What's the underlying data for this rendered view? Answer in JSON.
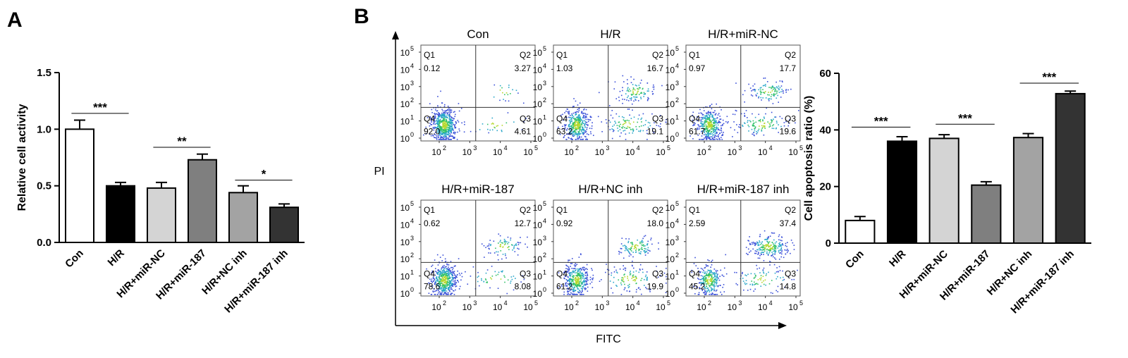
{
  "panel_labels": {
    "a": "A",
    "b": "B"
  },
  "chart_data": [
    {
      "id": "relative-cell-activity",
      "type": "bar",
      "title": "",
      "xlabel": "",
      "ylabel": "Relative cell activity",
      "ylim": [
        0,
        1.5
      ],
      "yticks": [
        0.0,
        0.5,
        1.0,
        1.5
      ],
      "ytick_labels": [
        "0.0",
        "0.5",
        "1.0",
        "1.5"
      ],
      "categories": [
        "Con",
        "H/R",
        "H/R+miR-NC",
        "H/R+miR-187",
        "H/R+NC inh",
        "H/R+miR-187 inh"
      ],
      "values": [
        1.0,
        0.5,
        0.48,
        0.73,
        0.44,
        0.31
      ],
      "errors": [
        0.08,
        0.03,
        0.05,
        0.05,
        0.06,
        0.03
      ],
      "bar_colors": [
        "#ffffff",
        "#000000",
        "#d4d4d4",
        "#7f7f7f",
        "#a3a3a3",
        "#333333"
      ],
      "significance": [
        {
          "from": 0,
          "to": 1,
          "label": "***",
          "y": 1.14
        },
        {
          "from": 2,
          "to": 3,
          "label": "**",
          "y": 0.84
        },
        {
          "from": 4,
          "to": 5,
          "label": "*",
          "y": 0.55
        }
      ],
      "grid": false,
      "legend": "none"
    },
    {
      "id": "cell-apoptosis-ratio",
      "type": "bar",
      "title": "",
      "xlabel": "",
      "ylabel": "Cell apoptosis ratio (%)",
      "ylim": [
        0,
        60
      ],
      "yticks": [
        0,
        20,
        40,
        60
      ],
      "ytick_labels": [
        "0",
        "20",
        "40",
        "60"
      ],
      "categories": [
        "Con",
        "H/R",
        "H/R+miR-NC",
        "H/R+miR-187",
        "H/R+NC inh",
        "H/R+miR-187 inh"
      ],
      "values": [
        8.0,
        36.0,
        37.0,
        20.5,
        37.3,
        52.8
      ],
      "errors": [
        1.4,
        1.6,
        1.3,
        1.2,
        1.4,
        0.9
      ],
      "bar_colors": [
        "#ffffff",
        "#000000",
        "#d4d4d4",
        "#7f7f7f",
        "#a3a3a3",
        "#333333"
      ],
      "significance": [
        {
          "from": 0,
          "to": 1,
          "label": "***",
          "y": 41
        },
        {
          "from": 2,
          "to": 3,
          "label": "***",
          "y": 42
        },
        {
          "from": 4,
          "to": 5,
          "label": "***",
          "y": 56.5
        }
      ],
      "grid": false,
      "legend": "none"
    }
  ],
  "flow_cytometry": {
    "xlabel": "FITC",
    "ylabel": "PI",
    "tick_base": "10",
    "tick_exponents": [
      "0",
      "1",
      "2",
      "3",
      "4",
      "5"
    ],
    "x_tick_exponents": [
      "2",
      "3",
      "4",
      "5"
    ],
    "quadrant_names": [
      "Q1",
      "Q2",
      "Q3",
      "Q4"
    ],
    "plots": [
      {
        "title": "Con",
        "q1": "0.12",
        "q2": "3.27",
        "q3": "4.61",
        "q4": "92.0"
      },
      {
        "title": "H/R",
        "q1": "1.03",
        "q2": "16.7",
        "q3": "19.1",
        "q4": "63.2"
      },
      {
        "title": "H/R+miR-NC",
        "q1": "0.97",
        "q2": "17.7",
        "q3": "19.6",
        "q4": "61.7"
      },
      {
        "title": "H/R+miR-187",
        "q1": "0.62",
        "q2": "12.7",
        "q3": "8.08",
        "q4": "78.6"
      },
      {
        "title": "H/R+NC inh",
        "q1": "0.92",
        "q2": "18.0",
        "q3": "19.9",
        "q4": "61.2"
      },
      {
        "title": "H/R+miR-187 inh",
        "q1": "2.59",
        "q2": "37.4",
        "q3": "14.8",
        "q4": "45.2"
      }
    ],
    "dot_colors": [
      "#3a4fd8",
      "#2aa7c9",
      "#33c26a",
      "#b5d82e"
    ]
  }
}
